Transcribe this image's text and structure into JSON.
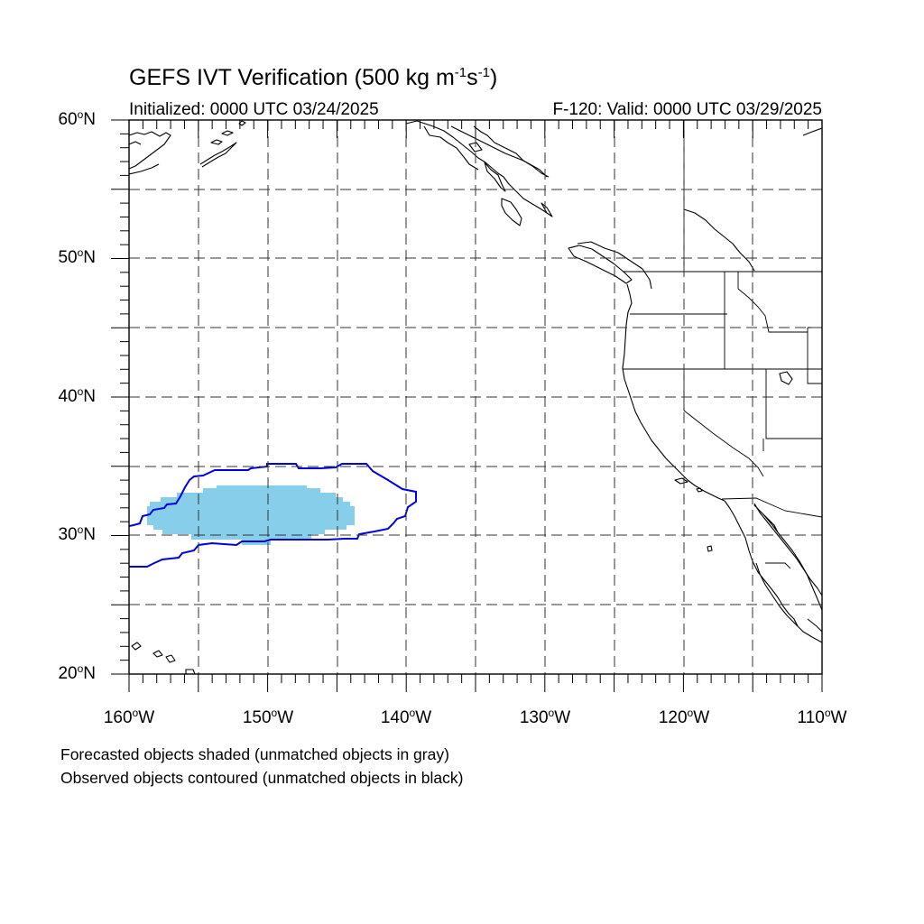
{
  "title": {
    "main": "GEFS IVT Verification (500 kg m",
    "exp1": "-1",
    "mid": "s",
    "exp2": "-1",
    "end": ")"
  },
  "initialized": "Initialized: 0000 UTC 03/24/2025",
  "valid": "F-120: Valid: 0000 UTC 03/29/2025",
  "map": {
    "lon_range": [
      -160,
      -110
    ],
    "lat_range": [
      20,
      60
    ],
    "projection": "cylindrical-equidistant",
    "gridlines": "dashed every 5 degrees",
    "forecast_fill_color": "#87ceeb",
    "observed_contour_color": "#0000dd"
  },
  "lat_labels": [
    {
      "deg": "20",
      "hemi": "N"
    },
    {
      "deg": "30",
      "hemi": "N"
    },
    {
      "deg": "40",
      "hemi": "N"
    },
    {
      "deg": "50",
      "hemi": "N"
    },
    {
      "deg": "60",
      "hemi": "N"
    }
  ],
  "lon_labels": [
    {
      "deg": "160",
      "hemi": "W"
    },
    {
      "deg": "150",
      "hemi": "W"
    },
    {
      "deg": "140",
      "hemi": "W"
    },
    {
      "deg": "130",
      "hemi": "W"
    },
    {
      "deg": "120",
      "hemi": "W"
    },
    {
      "deg": "110",
      "hemi": "W"
    }
  ],
  "captions": [
    "Forecasted objects shaded (unmatched objects in gray)",
    "Observed objects contoured (unmatched objects in black)"
  ]
}
